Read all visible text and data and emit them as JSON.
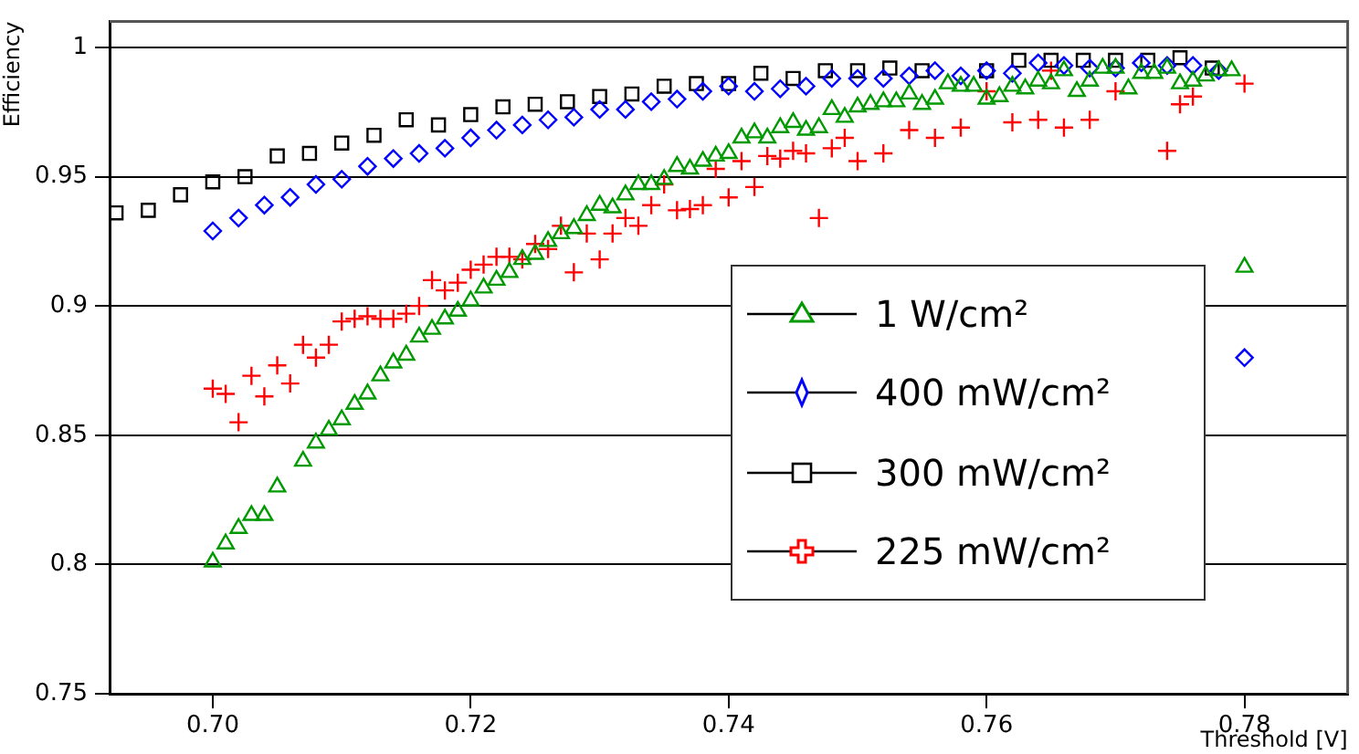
{
  "chart_data": {
    "type": "scatter",
    "xlabel": "Threshold [V]",
    "ylabel": "Efficiency",
    "xlim": [
      0.692,
      0.788
    ],
    "ylim": [
      0.75,
      1.01
    ],
    "xticks": [
      {
        "value": 0.7,
        "label": "0.70"
      },
      0.72,
      0.74,
      0.76,
      0.78
    ],
    "yticks": [
      0.75,
      0.8,
      0.85,
      0.9,
      0.95,
      1
    ],
    "grid": "y",
    "legend": "right",
    "series": [
      {
        "name": "1 W/cm²",
        "color": "#009900",
        "marker": "triangle",
        "x": [
          0.7,
          0.701,
          0.702,
          0.703,
          0.704,
          0.705,
          0.707,
          0.708,
          0.709,
          0.71,
          0.711,
          0.712,
          0.713,
          0.714,
          0.715,
          0.716,
          0.717,
          0.718,
          0.719,
          0.72,
          0.721,
          0.722,
          0.723,
          0.724,
          0.725,
          0.726,
          0.727,
          0.728,
          0.729,
          0.73,
          0.731,
          0.732,
          0.733,
          0.734,
          0.735,
          0.736,
          0.737,
          0.738,
          0.739,
          0.74,
          0.741,
          0.742,
          0.743,
          0.744,
          0.745,
          0.746,
          0.747,
          0.748,
          0.749,
          0.75,
          0.751,
          0.752,
          0.753,
          0.754,
          0.755,
          0.756,
          0.757,
          0.758,
          0.759,
          0.76,
          0.761,
          0.762,
          0.763,
          0.764,
          0.765,
          0.766,
          0.767,
          0.768,
          0.769,
          0.77,
          0.771,
          0.772,
          0.773,
          0.774,
          0.775,
          0.776,
          0.777,
          0.778,
          0.779,
          0.78
        ],
        "values": [
          0.801,
          0.808,
          0.814,
          0.819,
          0.819,
          0.83,
          0.84,
          0.847,
          0.852,
          0.856,
          0.862,
          0.866,
          0.873,
          0.878,
          0.881,
          0.888,
          0.891,
          0.895,
          0.898,
          0.902,
          0.907,
          0.91,
          0.913,
          0.918,
          0.92,
          0.925,
          0.928,
          0.93,
          0.935,
          0.939,
          0.938,
          0.943,
          0.947,
          0.947,
          0.949,
          0.954,
          0.953,
          0.956,
          0.958,
          0.959,
          0.965,
          0.967,
          0.965,
          0.969,
          0.971,
          0.968,
          0.969,
          0.976,
          0.973,
          0.977,
          0.978,
          0.979,
          0.979,
          0.982,
          0.978,
          0.98,
          0.986,
          0.985,
          0.985,
          0.98,
          0.981,
          0.985,
          0.984,
          0.987,
          0.986,
          0.991,
          0.983,
          0.987,
          0.992,
          0.992,
          0.984,
          0.99,
          0.99,
          0.992,
          0.986,
          0.987,
          0.989,
          0.991,
          0.991,
          0.915
        ]
      },
      {
        "name": "400 mW/cm²",
        "color": "#0000ff",
        "marker": "diamond",
        "x": [
          0.7,
          0.702,
          0.704,
          0.706,
          0.708,
          0.71,
          0.712,
          0.714,
          0.716,
          0.718,
          0.72,
          0.722,
          0.724,
          0.726,
          0.728,
          0.73,
          0.732,
          0.734,
          0.736,
          0.738,
          0.74,
          0.742,
          0.744,
          0.746,
          0.748,
          0.75,
          0.752,
          0.754,
          0.756,
          0.758,
          0.76,
          0.762,
          0.764,
          0.766,
          0.768,
          0.77,
          0.772,
          0.774,
          0.776,
          0.778,
          0.78
        ],
        "values": [
          0.929,
          0.934,
          0.939,
          0.942,
          0.947,
          0.949,
          0.954,
          0.957,
          0.959,
          0.961,
          0.965,
          0.968,
          0.97,
          0.972,
          0.973,
          0.976,
          0.976,
          0.979,
          0.98,
          0.983,
          0.985,
          0.983,
          0.984,
          0.985,
          0.988,
          0.988,
          0.988,
          0.989,
          0.991,
          0.989,
          0.991,
          0.99,
          0.994,
          0.993,
          0.992,
          0.992,
          0.994,
          0.993,
          0.993,
          0.991,
          0.88
        ]
      },
      {
        "name": "300 mW/cm²",
        "color": "#000000",
        "marker": "square",
        "x": [
          0.6925,
          0.695,
          0.6975,
          0.7,
          0.7025,
          0.705,
          0.7075,
          0.71,
          0.7125,
          0.715,
          0.7175,
          0.72,
          0.7225,
          0.725,
          0.7275,
          0.73,
          0.7325,
          0.735,
          0.7375,
          0.74,
          0.7425,
          0.745,
          0.7475,
          0.75,
          0.7525,
          0.755,
          0.76,
          0.7625,
          0.765,
          0.7675,
          0.77,
          0.7725,
          0.775,
          0.7775
        ],
        "values": [
          0.936,
          0.937,
          0.943,
          0.948,
          0.95,
          0.958,
          0.959,
          0.963,
          0.966,
          0.972,
          0.97,
          0.974,
          0.977,
          0.978,
          0.979,
          0.981,
          0.982,
          0.985,
          0.986,
          0.986,
          0.99,
          0.988,
          0.991,
          0.991,
          0.992,
          0.991,
          0.991,
          0.995,
          0.995,
          0.995,
          0.995,
          0.995,
          0.996,
          0.992
        ]
      },
      {
        "name": "225 mW/cm²",
        "color": "#ff0000",
        "marker": "cross",
        "x": [
          0.7,
          0.701,
          0.702,
          0.703,
          0.704,
          0.705,
          0.706,
          0.707,
          0.708,
          0.709,
          0.71,
          0.711,
          0.712,
          0.713,
          0.714,
          0.715,
          0.716,
          0.717,
          0.718,
          0.719,
          0.72,
          0.721,
          0.722,
          0.723,
          0.724,
          0.725,
          0.726,
          0.727,
          0.728,
          0.729,
          0.73,
          0.731,
          0.732,
          0.733,
          0.734,
          0.735,
          0.736,
          0.737,
          0.738,
          0.739,
          0.74,
          0.741,
          0.742,
          0.743,
          0.744,
          0.745,
          0.746,
          0.747,
          0.748,
          0.749,
          0.75,
          0.752,
          0.754,
          0.756,
          0.758,
          0.76,
          0.762,
          0.764,
          0.765,
          0.766,
          0.768,
          0.77,
          0.774,
          0.775,
          0.776,
          0.78
        ],
        "values": [
          0.868,
          0.866,
          0.855,
          0.873,
          0.865,
          0.877,
          0.87,
          0.885,
          0.88,
          0.885,
          0.894,
          0.895,
          0.896,
          0.895,
          0.895,
          0.897,
          0.9,
          0.91,
          0.906,
          0.909,
          0.914,
          0.916,
          0.919,
          0.919,
          0.918,
          0.924,
          0.922,
          0.931,
          0.913,
          0.928,
          0.918,
          0.928,
          0.934,
          0.931,
          0.939,
          0.947,
          0.937,
          0.9375,
          0.939,
          0.953,
          0.942,
          0.956,
          0.946,
          0.958,
          0.957,
          0.96,
          0.959,
          0.934,
          0.961,
          0.965,
          0.956,
          0.959,
          0.968,
          0.965,
          0.969,
          0.983,
          0.971,
          0.972,
          0.991,
          0.969,
          0.972,
          0.983,
          0.96,
          0.978,
          0.981,
          0.986
        ]
      }
    ]
  }
}
